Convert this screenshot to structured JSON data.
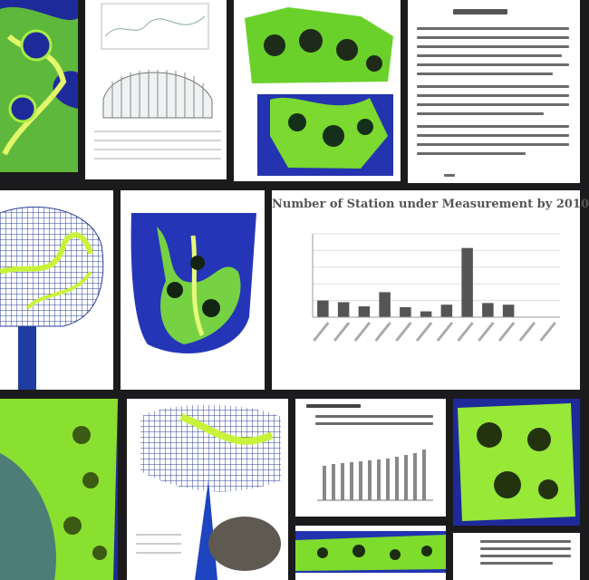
{
  "collage": {
    "chart_title": "Number of Station under Measurement by 2010"
  },
  "colors": {
    "mesh_green": "#9be22c",
    "vein_yellow": "#d9f25a",
    "deep_blue": "#1f2a9a",
    "bar_gray": "#555555"
  },
  "chart_data": {
    "type": "bar",
    "title": "Number of Station under Measurement by 2010",
    "categories": [
      "",
      "",
      "",
      "",
      "",
      "",
      "",
      "",
      "",
      "",
      "",
      ""
    ],
    "values": [
      20,
      18,
      13,
      30,
      12,
      7,
      15,
      83,
      17,
      15,
      0,
      0
    ],
    "ylim": [
      0,
      100
    ],
    "grid": true
  }
}
